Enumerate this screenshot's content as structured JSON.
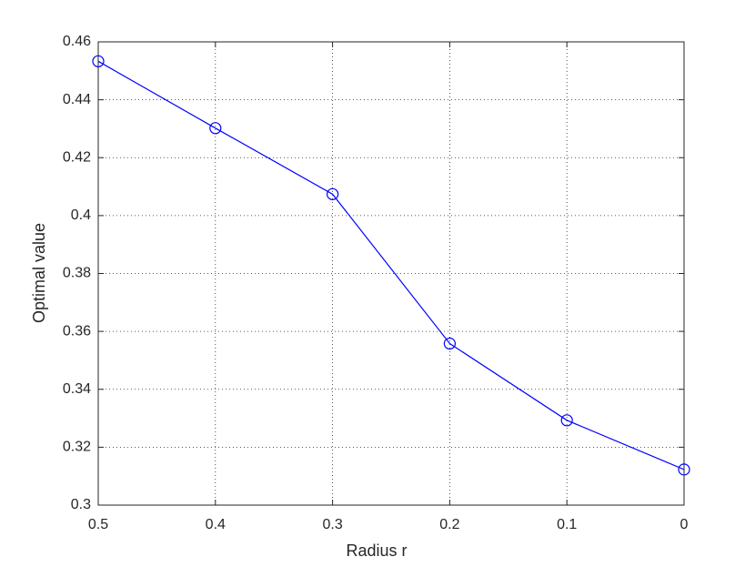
{
  "chart_data": {
    "type": "line",
    "xlabel": "Radius r",
    "ylabel": "Optimal value",
    "x": [
      0.5,
      0.4,
      0.3,
      0.2,
      0.1,
      0
    ],
    "series": [
      {
        "color": "#0000ff",
        "marker": "o",
        "values": [
          0.4533,
          0.4302,
          0.4074,
          0.3558,
          0.3293,
          0.3123
        ]
      }
    ],
    "xlim": [
      0.5,
      0
    ],
    "xticks": [
      0.5,
      0.4,
      0.3,
      0.2,
      0.1,
      0
    ],
    "ylim": [
      0.3,
      0.46
    ],
    "yticks": [
      0.3,
      0.32,
      0.34,
      0.36,
      0.38,
      0.4,
      0.42,
      0.44,
      0.46
    ],
    "grid": true
  }
}
